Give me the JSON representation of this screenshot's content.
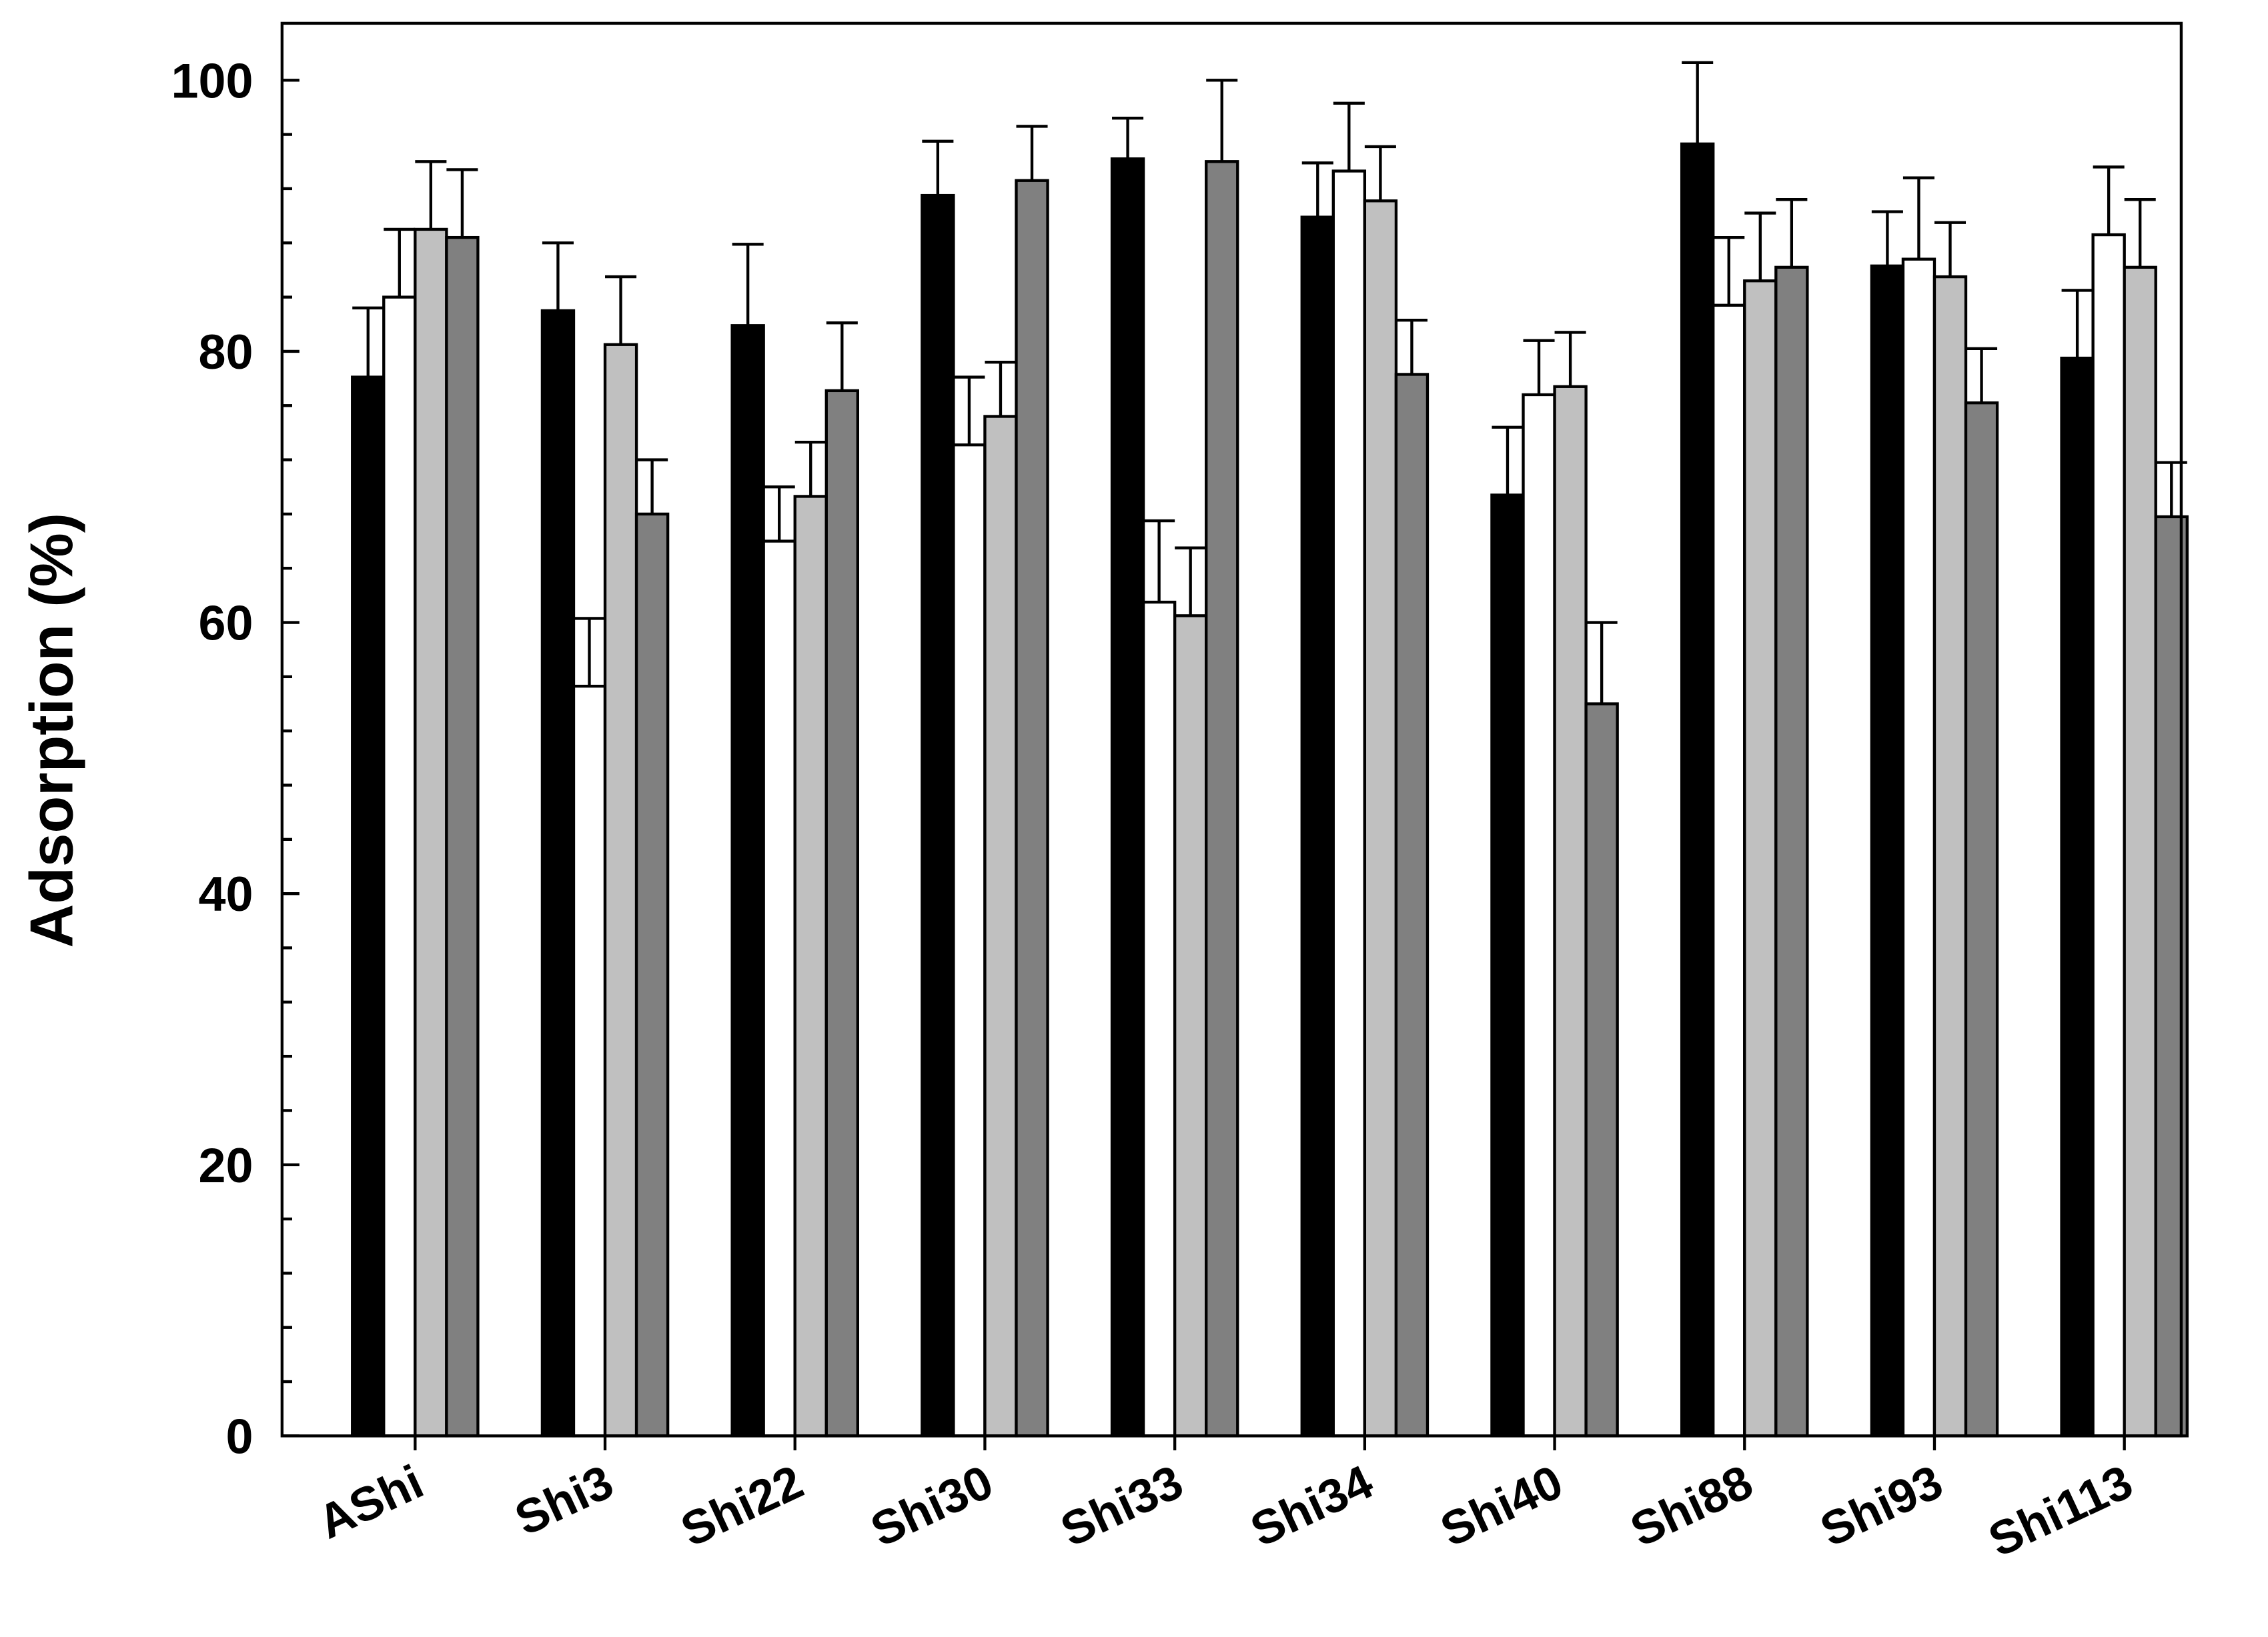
{
  "chart_data": {
    "type": "bar",
    "y_label": "Adsorption (%)",
    "categories": [
      "AShi",
      "Shi3",
      "Shi22",
      "Shi30",
      "Shi33",
      "Shi34",
      "Shi40",
      "Shi88",
      "Shi93",
      "Shi113"
    ],
    "series": [
      {
        "color": "#000000",
        "values": [
          78.1,
          83,
          81.9,
          91.5,
          94.2,
          89.9,
          69.4,
          95.3,
          86.3,
          79.5
        ],
        "errors": [
          5.1,
          5,
          6,
          4,
          3,
          4,
          5,
          6,
          4,
          5
        ]
      },
      {
        "color": "#ffffff",
        "values": [
          84,
          55.3,
          66,
          73.1,
          61.5,
          93.3,
          76.8,
          83.4,
          86.8,
          88.6
        ],
        "errors": [
          5,
          5,
          4,
          5,
          6,
          5,
          4,
          5,
          6,
          5
        ]
      },
      {
        "color": "#c0c0c0",
        "values": [
          89,
          80.5,
          69.3,
          75.2,
          60.5,
          91.1,
          77.4,
          85.2,
          85.5,
          86.2
        ],
        "errors": [
          5,
          5,
          4,
          4,
          5,
          4,
          4,
          5,
          4,
          5
        ]
      },
      {
        "color": "#808080",
        "values": [
          88.4,
          68,
          77.1,
          92.6,
          94,
          78.3,
          54,
          86.2,
          76.2,
          67.8
        ],
        "errors": [
          5,
          4,
          5,
          4,
          6,
          4,
          6,
          5,
          4,
          4
        ]
      }
    ],
    "ylim": [
      0,
      104.2
    ],
    "yticks": [
      0,
      20,
      40,
      60,
      80,
      100
    ],
    "yminorticks": [
      4,
      8,
      12,
      16,
      24,
      28,
      32,
      36,
      44,
      48,
      52,
      56,
      64,
      68,
      72,
      76,
      84,
      88,
      92,
      96
    ]
  }
}
